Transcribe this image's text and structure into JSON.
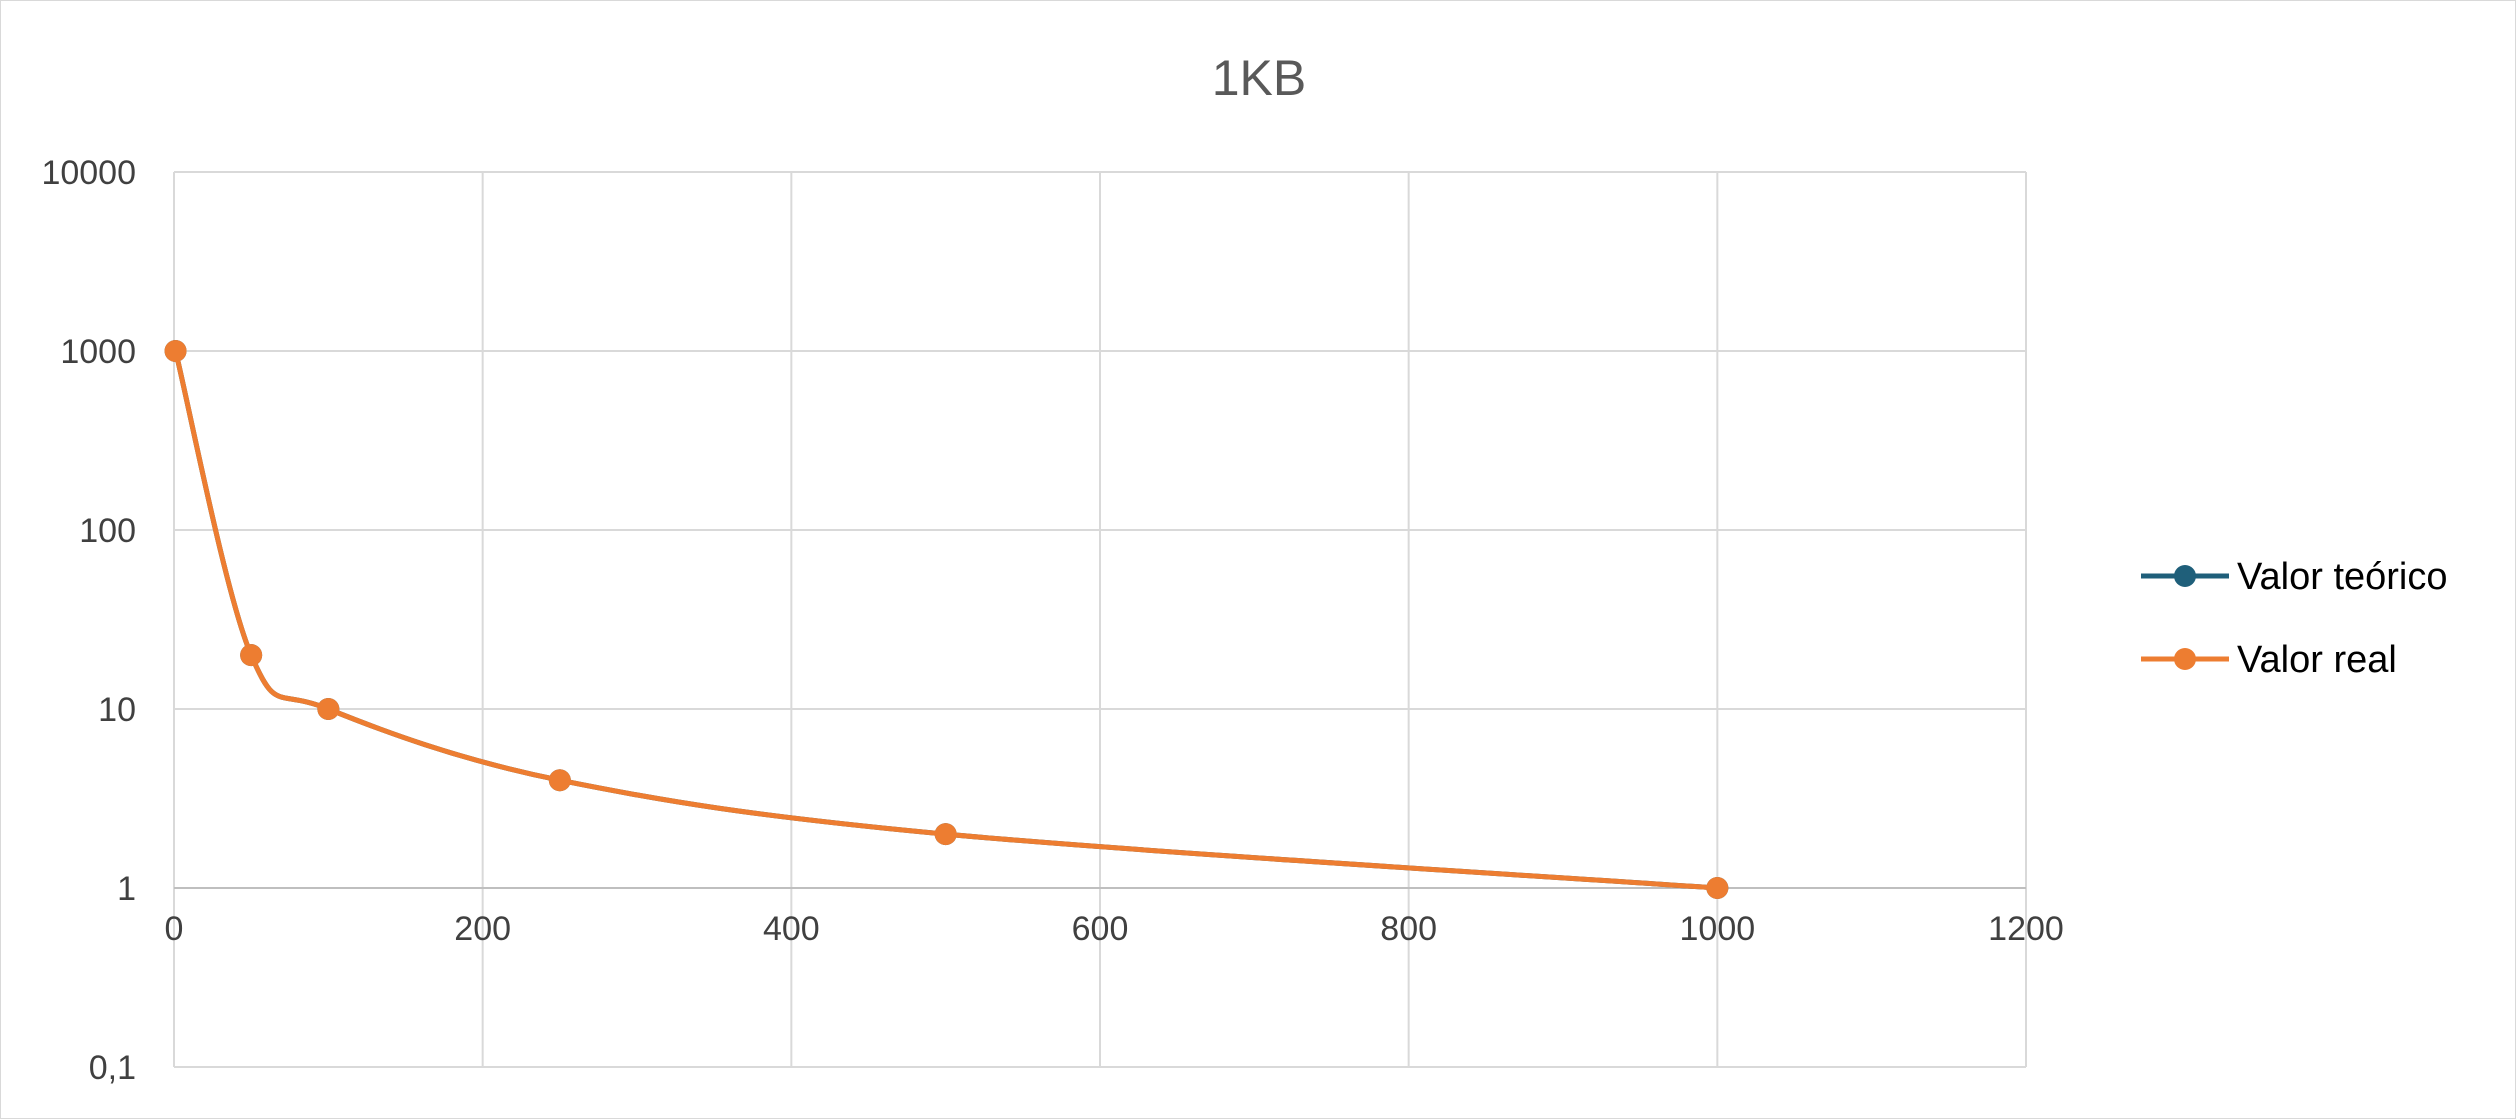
{
  "chart_data": {
    "type": "line",
    "title": "1KB",
    "xlabel": "",
    "ylabel": "",
    "x_ticks": [
      "0",
      "200",
      "400",
      "600",
      "800",
      "1000",
      "1200"
    ],
    "y_ticks": [
      "0,1",
      "1",
      "10",
      "100",
      "1000",
      "10000"
    ],
    "xlim": [
      0,
      1200
    ],
    "ylim": [
      0.1,
      10000
    ],
    "y_scale": "log",
    "x_axis_crosses_y": 1,
    "grid": true,
    "smooth": true,
    "legend_position": "right",
    "series": [
      {
        "name": "Valor teórico",
        "color": "#1f5f7a",
        "x": [
          1,
          50,
          100,
          250,
          500,
          1000
        ],
        "y": [
          1000,
          20,
          10,
          4,
          2,
          1
        ]
      },
      {
        "name": "Valor real",
        "color": "#ed7d31",
        "x": [
          1,
          50,
          100,
          250,
          500,
          1000
        ],
        "y": [
          1000,
          20,
          10,
          4,
          2,
          1
        ]
      }
    ]
  }
}
